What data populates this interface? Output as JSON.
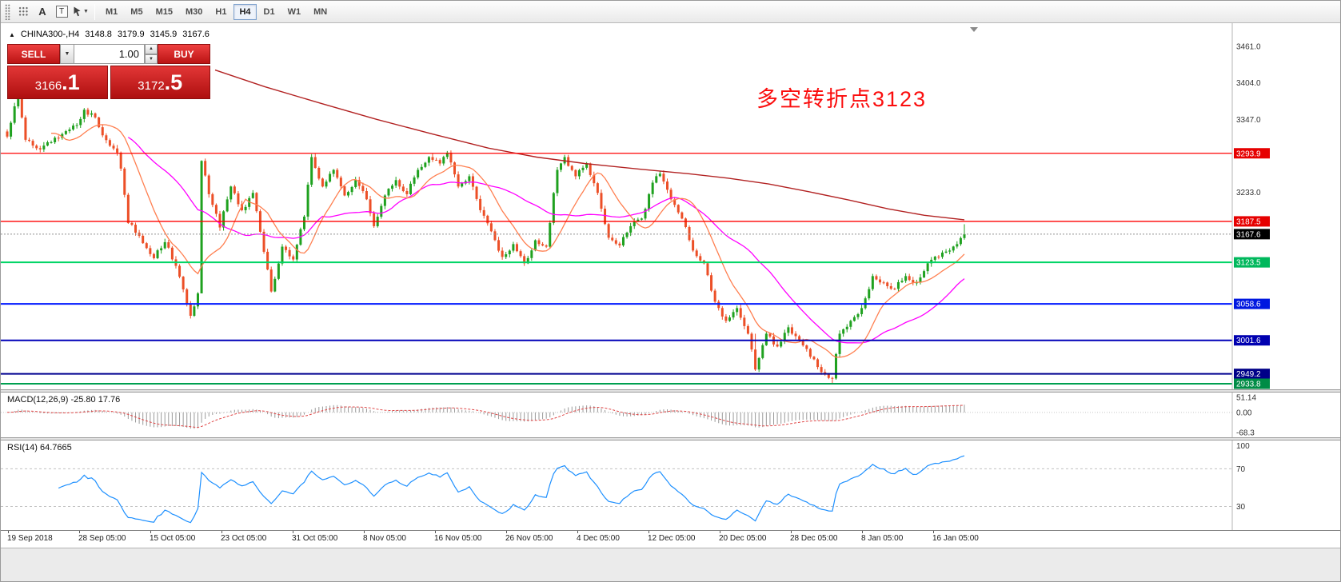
{
  "icons": {
    "caret_down": "▼",
    "caret_up": "▲",
    "symbol_marker": "▲",
    "cursor_caret": "▼"
  },
  "toolbar": {
    "tools": [
      {
        "id": "grid",
        "glyph": ""
      },
      {
        "id": "text",
        "glyph": "A"
      },
      {
        "id": "label",
        "glyph": "T"
      },
      {
        "id": "cursor",
        "glyph": ""
      }
    ],
    "timeframes": [
      "M1",
      "M5",
      "M15",
      "M30",
      "H1",
      "H4",
      "D1",
      "W1",
      "MN"
    ],
    "active_timeframe": "H4"
  },
  "symbol_line": {
    "symbol": "CHINA300-,H4",
    "open": "3148.8",
    "high": "3179.9",
    "low": "3145.9",
    "close": "3167.6"
  },
  "trade_panel": {
    "sell_label": "SELL",
    "buy_label": "BUY",
    "volume": "1.00",
    "sell_price": {
      "main": "3166",
      "pips": ".1"
    },
    "buy_price": {
      "main": "3172",
      "pips": ".5"
    }
  },
  "annotation": {
    "text": "多空转折点3123",
    "color": "#fb0d0d"
  },
  "price_axis": {
    "gray_ticks": [
      {
        "label": "3461.0",
        "price": 3461.0
      },
      {
        "label": "3404.0",
        "price": 3404.0
      },
      {
        "label": "3347.0",
        "price": 3347.0
      },
      {
        "label": "3233.0",
        "price": 3233.0
      }
    ],
    "current": {
      "label": "3167.6",
      "price": 3167.6,
      "bg": "#000000"
    }
  },
  "indicators": {
    "macd": {
      "label": "MACD(12,26,9) -25.80 17.76",
      "periods": [
        12,
        26,
        9
      ],
      "ylim": [
        51.14,
        -68.3
      ],
      "axis": [
        {
          "label": "51.14",
          "value": 51.14
        },
        {
          "label": "0.00",
          "value": 0
        },
        {
          "label": "-68.3",
          "value": -68.3
        }
      ],
      "histogram_color": "#9a9a9a",
      "signal_color": "#e04848"
    },
    "rsi": {
      "label": "RSI(14) 64.7665",
      "period": 14,
      "value": 64.7665,
      "line_color": "#1e90ff",
      "scale": [
        10,
        95
      ],
      "gridlines": [
        70,
        30
      ],
      "axis": [
        {
          "label": "100",
          "value": 100
        },
        {
          "label": "70",
          "value": 70
        },
        {
          "label": "30",
          "value": 30
        }
      ]
    }
  },
  "time_axis": {
    "labels": [
      "19 Sep 2018",
      "28 Sep 05:00",
      "15 Oct 05:00",
      "23 Oct 05:00",
      "31 Oct 05:00",
      "8 Nov 05:00",
      "16 Nov 05:00",
      "26 Nov 05:00",
      "4 Dec 05:00",
      "12 Dec 05:00",
      "20 Dec 05:00",
      "28 Dec 05:00",
      "8 Jan 05:00",
      "16 Jan 05:00"
    ],
    "start_x": 8,
    "step_x": 89
  },
  "chart_data": {
    "type": "candlestick",
    "symbol": "CHINA300-",
    "timeframe": "H4",
    "title": "CHINA300- H4 candlestick chart with MACD and RSI",
    "price_range": [
      2933.8,
      3461.0
    ],
    "current_price": 3167.6,
    "candle_count": 262,
    "colors": {
      "up": "#1fa11f",
      "down": "#ec4f27"
    },
    "close_anchors": [
      [
        0,
        3320
      ],
      [
        3,
        3385
      ],
      [
        5,
        3315
      ],
      [
        9,
        3300
      ],
      [
        14,
        3318
      ],
      [
        19,
        3338
      ],
      [
        21,
        3362
      ],
      [
        24,
        3350
      ],
      [
        26,
        3322
      ],
      [
        30,
        3295
      ],
      [
        31,
        3270
      ],
      [
        33,
        3185
      ],
      [
        36,
        3165
      ],
      [
        40,
        3130
      ],
      [
        43,
        3155
      ],
      [
        46,
        3118
      ],
      [
        49,
        3058
      ],
      [
        50,
        3040
      ],
      [
        52,
        3075
      ],
      [
        53,
        3282
      ],
      [
        55,
        3230
      ],
      [
        58,
        3178
      ],
      [
        61,
        3242
      ],
      [
        64,
        3205
      ],
      [
        67,
        3232
      ],
      [
        70,
        3140
      ],
      [
        72,
        3078
      ],
      [
        75,
        3148
      ],
      [
        78,
        3128
      ],
      [
        81,
        3195
      ],
      [
        83,
        3288
      ],
      [
        86,
        3242
      ],
      [
        89,
        3268
      ],
      [
        92,
        3228
      ],
      [
        95,
        3252
      ],
      [
        98,
        3222
      ],
      [
        100,
        3180
      ],
      [
        103,
        3228
      ],
      [
        106,
        3252
      ],
      [
        109,
        3230
      ],
      [
        112,
        3268
      ],
      [
        115,
        3288
      ],
      [
        118,
        3278
      ],
      [
        120,
        3295
      ],
      [
        123,
        3242
      ],
      [
        126,
        3258
      ],
      [
        129,
        3205
      ],
      [
        132,
        3172
      ],
      [
        135,
        3132
      ],
      [
        138,
        3152
      ],
      [
        141,
        3122
      ],
      [
        144,
        3158
      ],
      [
        147,
        3148
      ],
      [
        150,
        3268
      ],
      [
        152,
        3288
      ],
      [
        155,
        3258
      ],
      [
        158,
        3278
      ],
      [
        161,
        3232
      ],
      [
        164,
        3162
      ],
      [
        167,
        3150
      ],
      [
        170,
        3180
      ],
      [
        173,
        3192
      ],
      [
        176,
        3248
      ],
      [
        178,
        3262
      ],
      [
        181,
        3222
      ],
      [
        184,
        3192
      ],
      [
        187,
        3142
      ],
      [
        190,
        3122
      ],
      [
        193,
        3062
      ],
      [
        196,
        3032
      ],
      [
        199,
        3052
      ],
      [
        202,
        3012
      ],
      [
        204,
        2956
      ],
      [
        207,
        3012
      ],
      [
        210,
        2992
      ],
      [
        213,
        3022
      ],
      [
        216,
        3002
      ],
      [
        219,
        2976
      ],
      [
        222,
        2952
      ],
      [
        225,
        2942
      ],
      [
        227,
        3012
      ],
      [
        230,
        3032
      ],
      [
        233,
        3052
      ],
      [
        236,
        3102
      ],
      [
        239,
        3092
      ],
      [
        242,
        3082
      ],
      [
        245,
        3102
      ],
      [
        248,
        3092
      ],
      [
        251,
        3122
      ],
      [
        254,
        3132
      ],
      [
        257,
        3142
      ],
      [
        259,
        3152
      ],
      [
        261,
        3167.6
      ]
    ],
    "wick_overrides": {
      "53": {
        "low": 3078
      },
      "204": {
        "high": 3012
      },
      "225": {
        "low": 2934
      },
      "261": {
        "high": 3183
      }
    },
    "ma": {
      "fast": {
        "period": 13,
        "color": "#ff7f50"
      },
      "mid": {
        "period": 34,
        "color": "#ff00ff"
      },
      "slow_color": "#b22222",
      "slow_path": [
        [
          268,
          3424
        ],
        [
          330,
          3398
        ],
        [
          400,
          3372
        ],
        [
          470,
          3347
        ],
        [
          540,
          3324
        ],
        [
          610,
          3302
        ],
        [
          670,
          3288
        ],
        [
          730,
          3278
        ],
        [
          800,
          3269
        ],
        [
          860,
          3262
        ],
        [
          910,
          3255
        ],
        [
          960,
          3246
        ],
        [
          1010,
          3234
        ],
        [
          1060,
          3221
        ],
        [
          1110,
          3207
        ],
        [
          1155,
          3197
        ],
        [
          1205,
          3190
        ]
      ]
    },
    "levels": [
      {
        "label": "3293.9",
        "price": 3293.9,
        "color": "#ff0000",
        "width": 1.3,
        "tag_bg": "#e60000"
      },
      {
        "label": "3187.5",
        "price": 3187.5,
        "color": "#ff0000",
        "width": 1.3,
        "tag_bg": "#e60000"
      },
      {
        "label": "3123.5",
        "price": 3123.5,
        "color": "#00d465",
        "width": 2,
        "tag_bg": "#00b85c"
      },
      {
        "label": "3058.6",
        "price": 3058.6,
        "color": "#0018ff",
        "width": 2,
        "tag_bg": "#0018e0"
      },
      {
        "label": "3001.6",
        "price": 3001.6,
        "color": "#0000b8",
        "width": 2,
        "tag_bg": "#0000b0"
      },
      {
        "label": "2949.2",
        "price": 2949.2,
        "color": "#000090",
        "width": 2,
        "tag_bg": "#000088"
      },
      {
        "label": "2933.8",
        "price": 2933.8,
        "color": "#00a050",
        "width": 2,
        "tag_bg": "#008c46"
      }
    ]
  }
}
